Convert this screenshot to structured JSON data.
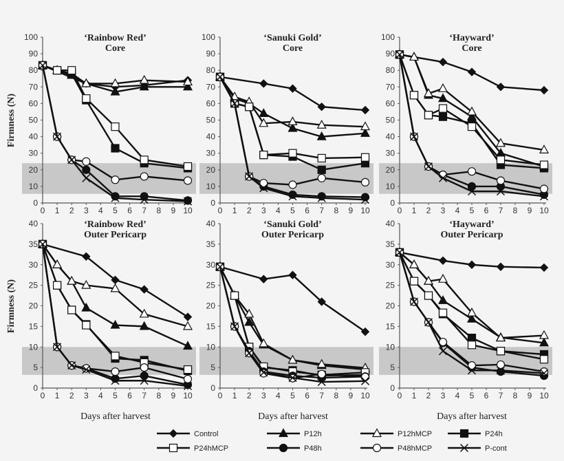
{
  "chart_data": {
    "type": "line",
    "ylabel": "Firmness (N)",
    "xlabel": "Days after harvest",
    "x": [
      0,
      1,
      2,
      3,
      5,
      7,
      10
    ],
    "x_ticks": [
      0,
      1,
      2,
      3,
      4,
      5,
      6,
      7,
      8,
      9,
      10
    ],
    "grid": false,
    "legend_position": "bottom",
    "legend": [
      {
        "name": "Control",
        "marker": "filled-diamond"
      },
      {
        "name": "P12h",
        "marker": "filled-triangle"
      },
      {
        "name": "P12hMCP",
        "marker": "open-triangle"
      },
      {
        "name": "P24h",
        "marker": "filled-square"
      },
      {
        "name": "P24hMCP",
        "marker": "open-square"
      },
      {
        "name": "P48h",
        "marker": "filled-circle"
      },
      {
        "name": "P48hMCP",
        "marker": "open-circle"
      },
      {
        "name": "P-cont",
        "marker": "x"
      }
    ],
    "panels": [
      {
        "title1": "‘Rainbow Red’",
        "title2": "Core",
        "ylim": [
          0,
          100
        ],
        "yticks": [
          0,
          10,
          20,
          30,
          40,
          50,
          60,
          70,
          80,
          90,
          100
        ],
        "band": [
          5.5,
          24
        ],
        "series": [
          [
            83,
            null,
            null,
            72,
            70,
            71,
            74
          ],
          [
            83,
            80,
            77,
            72,
            67,
            70,
            70
          ],
          [
            83,
            80,
            78,
            72,
            72,
            74,
            73
          ],
          [
            83,
            80,
            78,
            62,
            33,
            24,
            21
          ],
          [
            83,
            80,
            80,
            63,
            46,
            26,
            22
          ],
          [
            83,
            40,
            26,
            20,
            4,
            4,
            1.5
          ],
          [
            83,
            40,
            26,
            25,
            14,
            16,
            13.5
          ],
          [
            83,
            40,
            26,
            15,
            3,
            2,
            1
          ]
        ]
      },
      {
        "title1": "‘Sanuki Gold’",
        "title2": "Core",
        "ylim": [
          0,
          100
        ],
        "yticks": [
          0,
          10,
          20,
          30,
          40,
          50,
          60,
          70,
          80,
          90,
          100
        ],
        "band": [
          5.5,
          24
        ],
        "series": [
          [
            76,
            null,
            null,
            72,
            69,
            58,
            56
          ],
          [
            76,
            63,
            60,
            54,
            45,
            40,
            42
          ],
          [
            76,
            64,
            61,
            48,
            49,
            47,
            46
          ],
          [
            76,
            60,
            58,
            29,
            28,
            20,
            24
          ],
          [
            76,
            60,
            58,
            29,
            30,
            27,
            27.5
          ],
          [
            76,
            60,
            16,
            10,
            5,
            4,
            3.5
          ],
          [
            76,
            60,
            16,
            12,
            11,
            15,
            12.5
          ],
          [
            76,
            60,
            16,
            9,
            4,
            3,
            2
          ]
        ]
      },
      {
        "title1": "‘Hayward’",
        "title2": "Core",
        "ylim": [
          0,
          100
        ],
        "yticks": [
          0,
          10,
          20,
          30,
          40,
          50,
          60,
          70,
          80,
          90,
          100
        ],
        "band": [
          5.5,
          24
        ],
        "series": [
          [
            89.5,
            null,
            null,
            85,
            79,
            70,
            68
          ],
          [
            89.5,
            88,
            65,
            63,
            52,
            30,
            22
          ],
          [
            89.5,
            88,
            66,
            69,
            55,
            36,
            32
          ],
          [
            89.5,
            65,
            53,
            52,
            48,
            23,
            21
          ],
          [
            89.5,
            65,
            53,
            57,
            46,
            26,
            23
          ],
          [
            89.5,
            40,
            22,
            17,
            10,
            10,
            5
          ],
          [
            89.5,
            40,
            22,
            17,
            19,
            13.5,
            8.5
          ],
          [
            89.5,
            40,
            22,
            15,
            7,
            7,
            4
          ]
        ]
      },
      {
        "title1": "‘Rainbow Red’",
        "title2": "Outer Pericarp",
        "ylim": [
          0,
          40
        ],
        "yticks": [
          0,
          5,
          10,
          15,
          20,
          25,
          30,
          35,
          40
        ],
        "band": [
          3.2,
          10
        ],
        "series": [
          [
            35,
            null,
            null,
            32,
            26.3,
            24,
            17.3
          ],
          [
            35,
            30,
            26,
            19.5,
            15.3,
            15,
            10.2
          ],
          [
            35,
            30,
            26,
            25,
            24.2,
            18,
            15
          ],
          [
            35,
            25,
            19,
            15.5,
            7.2,
            6.8,
            4.2
          ],
          [
            35,
            25,
            19,
            15.3,
            7.8,
            6.2,
            4.5
          ],
          [
            35,
            10,
            5.5,
            4.8,
            2.3,
            3,
            0.8
          ],
          [
            35,
            10,
            5.5,
            4.8,
            4,
            5,
            2.2
          ],
          [
            35,
            10,
            5.5,
            4.5,
            1.8,
            1.8,
            0.5
          ]
        ]
      },
      {
        "title1": "‘Sanuki Gold’",
        "title2": "Outer Pericarp",
        "ylim": [
          0,
          40
        ],
        "yticks": [
          0,
          5,
          10,
          15,
          20,
          25,
          30,
          35,
          40
        ],
        "band": [
          3.2,
          10
        ],
        "series": [
          [
            29.5,
            null,
            null,
            26.5,
            27.5,
            21,
            13.7
          ],
          [
            29.5,
            22.5,
            16,
            10.5,
            6.8,
            5.5,
            4.5
          ],
          [
            29.5,
            22.5,
            18,
            10.8,
            6.8,
            5.8,
            4.9
          ],
          [
            29.5,
            22.5,
            10,
            5,
            4.3,
            3,
            3.2
          ],
          [
            29.5,
            22.5,
            10,
            5.2,
            4,
            3.2,
            3.8
          ],
          [
            29.5,
            15,
            9,
            4,
            3,
            2.5,
            2.8
          ],
          [
            29.5,
            15,
            8.5,
            3.6,
            2.4,
            3.4,
            2.7
          ],
          [
            29.5,
            15,
            8.5,
            3.8,
            2.5,
            1.5,
            1.7
          ]
        ]
      },
      {
        "title1": "‘Hayward’",
        "title2": "Outer Pericarp",
        "ylim": [
          0,
          40
        ],
        "yticks": [
          0,
          5,
          10,
          15,
          20,
          25,
          30,
          35,
          40
        ],
        "band": [
          3.2,
          10
        ],
        "series": [
          [
            33,
            null,
            null,
            31,
            30,
            29.5,
            29.3
          ],
          [
            33,
            30,
            26,
            21.3,
            16.8,
            12.3,
            11
          ],
          [
            33,
            30,
            26,
            26.5,
            18.3,
            12.2,
            12.8
          ],
          [
            33,
            26,
            22.5,
            18,
            12.2,
            9,
            8.2
          ],
          [
            33,
            26,
            22.5,
            18.3,
            10.5,
            9,
            7
          ],
          [
            33,
            21,
            16,
            11,
            5,
            4,
            3
          ],
          [
            33,
            21,
            16,
            11.2,
            5.5,
            5.7,
            4
          ],
          [
            33,
            21,
            16,
            9,
            4.3,
            4.3,
            3.6
          ]
        ]
      }
    ]
  }
}
